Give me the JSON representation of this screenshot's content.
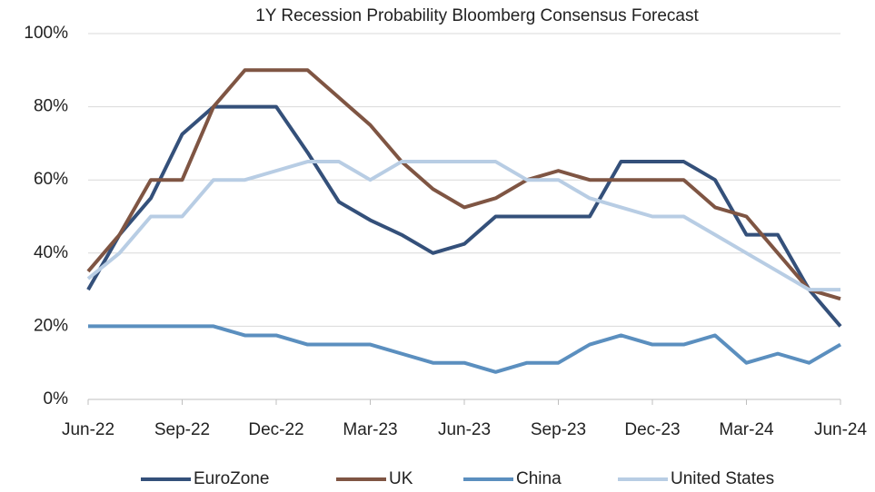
{
  "chart_data": {
    "type": "line",
    "title": "1Y Recession Probability Bloomberg Consensus Forecast",
    "categories": [
      "Jun-22",
      null,
      null,
      "Sep-22",
      null,
      null,
      "Dec-22",
      null,
      null,
      "Mar-23",
      null,
      null,
      "Jun-23",
      null,
      null,
      "Sep-23",
      null,
      null,
      "Dec-23",
      null,
      null,
      "Mar-24",
      null,
      null,
      "Jun-24"
    ],
    "series": [
      {
        "name": "EuroZone",
        "color": "#34507a",
        "values": [
          30,
          45,
          55,
          72.5,
          80,
          80,
          80,
          67.5,
          54,
          49,
          45,
          40,
          42.5,
          50,
          50,
          50,
          50,
          65,
          65,
          65,
          60,
          45,
          45,
          30,
          20
        ]
      },
      {
        "name": "UK",
        "color": "#7f5543",
        "values": [
          35,
          45,
          60,
          60,
          80,
          90,
          90,
          90,
          82.5,
          75,
          65,
          57.5,
          52.5,
          55,
          60,
          62.5,
          60,
          60,
          60,
          60,
          52.5,
          50,
          40,
          30,
          27.5
        ]
      },
      {
        "name": "China",
        "color": "#5b8fbf",
        "values": [
          20,
          20,
          20,
          20,
          20,
          17.5,
          17.5,
          15,
          15,
          15,
          12.5,
          10,
          10,
          7.5,
          10,
          10,
          15,
          17.5,
          15,
          15,
          17.5,
          10,
          12.5,
          10,
          15
        ]
      },
      {
        "name": "United States",
        "color": "#b8cde4",
        "values": [
          33,
          40,
          50,
          50,
          60,
          60,
          62.5,
          65,
          65,
          60,
          65,
          65,
          65,
          65,
          60,
          60,
          55,
          52.5,
          50,
          50,
          45,
          40,
          35,
          30,
          30
        ]
      }
    ],
    "ylim": [
      0,
      100
    ],
    "yticks": [
      {
        "value": 0,
        "label": "0%"
      },
      {
        "value": 20,
        "label": "20%"
      },
      {
        "value": 40,
        "label": "40%"
      },
      {
        "value": 60,
        "label": "60%"
      },
      {
        "value": 80,
        "label": "80%"
      },
      {
        "value": 100,
        "label": "100%"
      }
    ],
    "grid": true,
    "legend": "bottom"
  }
}
